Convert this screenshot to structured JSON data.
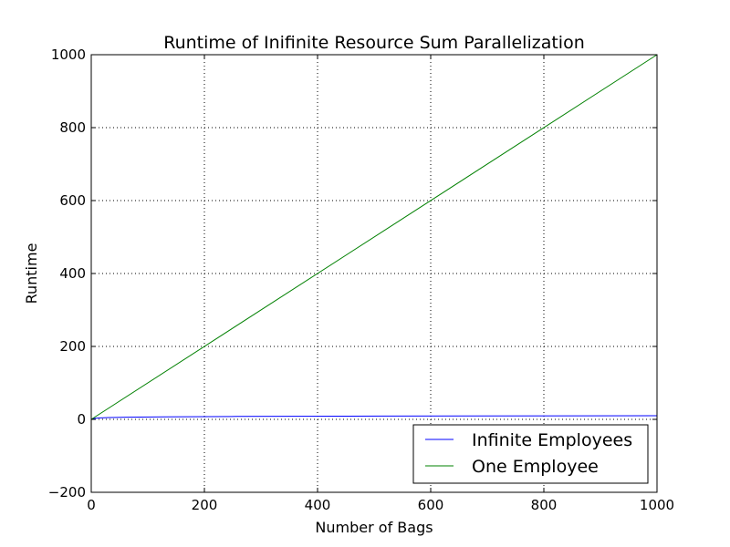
{
  "chart_data": {
    "type": "line",
    "title": "Runtime of Inifinite Resource Sum Parallelization",
    "xlabel": "Number of Bags",
    "ylabel": "Runtime",
    "xlim": [
      0,
      1000
    ],
    "ylim": [
      -200,
      1000
    ],
    "x_ticks": [
      0,
      200,
      400,
      600,
      800,
      1000
    ],
    "y_ticks": [
      -200,
      0,
      200,
      400,
      600,
      800,
      1000
    ],
    "x_tick_labels": [
      "0",
      "200",
      "400",
      "600",
      "800",
      "1000"
    ],
    "y_tick_labels": [
      "−200",
      "0",
      "200",
      "400",
      "600",
      "800",
      "1000"
    ],
    "grid": true,
    "legend_position": "lower-right",
    "series": [
      {
        "name": "Infinite Employees",
        "color": "#0000ff",
        "x": [
          1,
          2,
          4,
          8,
          16,
          32,
          64,
          128,
          256,
          512,
          1000
        ],
        "y": [
          0,
          1,
          2,
          3,
          4,
          5,
          6,
          7,
          8,
          9,
          10
        ]
      },
      {
        "name": "One Employee",
        "color": "#008000",
        "x": [
          0,
          1000
        ],
        "y": [
          0,
          1000
        ]
      }
    ]
  }
}
